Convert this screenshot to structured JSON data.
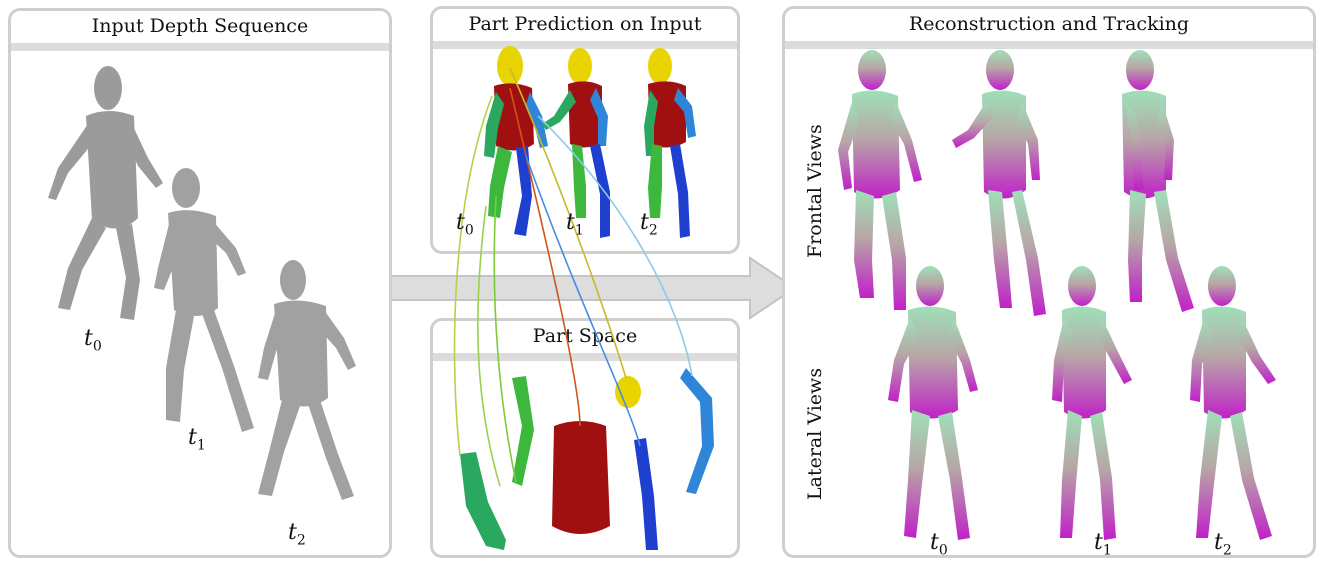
{
  "panels": {
    "input": {
      "title": "Input Depth Sequence"
    },
    "prediction": {
      "title": "Part Prediction on Input"
    },
    "part_space": {
      "title": "Part Space"
    },
    "reconstruction": {
      "title": "Reconstruction and Tracking"
    }
  },
  "time_labels": {
    "t0": "t",
    "t0_sub": "0",
    "t1": "t",
    "t1_sub": "1",
    "t2": "t",
    "t2_sub": "2"
  },
  "row_labels": {
    "frontal": "Frontal Views",
    "lateral": "Lateral Views"
  },
  "part_colors": {
    "head": "#e8d400",
    "torso": "#a01010",
    "left_arm": "#2aa860",
    "right_arm": "#2f86d8",
    "left_leg": "#3cb83c",
    "right_leg": "#1f3fcf",
    "depth": "#7a7a7a"
  }
}
